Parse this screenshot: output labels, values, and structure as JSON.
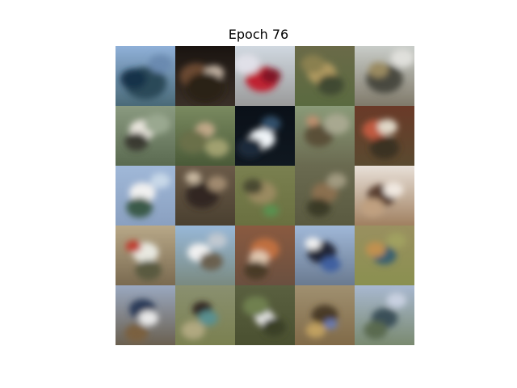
{
  "figure": {
    "title": "Epoch 76"
  },
  "samples": [
    {
      "sky": "#8fb0d8",
      "ground": "#4a6a78",
      "blobs": [
        [
          "#2a4a58",
          0.5,
          0.62,
          0.32
        ],
        [
          "#16324a",
          0.3,
          0.55,
          0.2
        ],
        [
          "#6a8ab0",
          0.75,
          0.3,
          0.18
        ]
      ]
    },
    {
      "sky": "#1a1410",
      "ground": "#3a3028",
      "blobs": [
        [
          "#6a4a30",
          0.35,
          0.5,
          0.25
        ],
        [
          "#c0b0a0",
          0.65,
          0.45,
          0.15
        ],
        [
          "#2a2018",
          0.5,
          0.7,
          0.3
        ]
      ]
    },
    {
      "sky": "#d0d8e0",
      "ground": "#9a9a9a",
      "blobs": [
        [
          "#c02030",
          0.45,
          0.55,
          0.25
        ],
        [
          "#801828",
          0.6,
          0.5,
          0.15
        ],
        [
          "#e0e0e8",
          0.2,
          0.3,
          0.2
        ]
      ]
    },
    {
      "sky": "#6a6a48",
      "ground": "#5a6a40",
      "blobs": [
        [
          "#b09a60",
          0.45,
          0.45,
          0.22
        ],
        [
          "#404830",
          0.6,
          0.65,
          0.2
        ],
        [
          "#8a8050",
          0.3,
          0.3,
          0.18
        ]
      ]
    },
    {
      "sky": "#c8ccc8",
      "ground": "#807a6a",
      "blobs": [
        [
          "#4a4a40",
          0.5,
          0.55,
          0.28
        ],
        [
          "#9a8a60",
          0.4,
          0.4,
          0.15
        ],
        [
          "#e0e0dc",
          0.8,
          0.2,
          0.18
        ]
      ]
    },
    {
      "sky": "#8a9a80",
      "ground": "#5a6a50",
      "blobs": [
        [
          "#e8e4dc",
          0.45,
          0.4,
          0.2
        ],
        [
          "#3a3a30",
          0.35,
          0.6,
          0.18
        ],
        [
          "#9aa890",
          0.7,
          0.3,
          0.2
        ]
      ]
    },
    {
      "sky": "#7a8a60",
      "ground": "#4a5a38",
      "blobs": [
        [
          "#c0a888",
          0.5,
          0.4,
          0.15
        ],
        [
          "#6a7048",
          0.3,
          0.6,
          0.22
        ],
        [
          "#a0a070",
          0.7,
          0.7,
          0.18
        ]
      ]
    },
    {
      "sky": "#0a1018",
      "ground": "#101820",
      "blobs": [
        [
          "#f0f4f8",
          0.45,
          0.55,
          0.2
        ],
        [
          "#30506a",
          0.6,
          0.3,
          0.15
        ],
        [
          "#1a2a3a",
          0.25,
          0.7,
          0.2
        ]
      ]
    },
    {
      "sky": "#8a9a78",
      "ground": "#6a6a50",
      "blobs": [
        [
          "#5a5038",
          0.4,
          0.5,
          0.22
        ],
        [
          "#a8a890",
          0.7,
          0.3,
          0.2
        ],
        [
          "#c09070",
          0.3,
          0.25,
          0.1
        ]
      ]
    },
    {
      "sky": "#6a3a28",
      "ground": "#5a4a30",
      "blobs": [
        [
          "#c05a40",
          0.35,
          0.4,
          0.2
        ],
        [
          "#e0d8c8",
          0.55,
          0.35,
          0.15
        ],
        [
          "#3a3020",
          0.5,
          0.7,
          0.22
        ]
      ]
    },
    {
      "sky": "#a0b8d8",
      "ground": "#8aa0c0",
      "blobs": [
        [
          "#f0f0f0",
          0.45,
          0.45,
          0.2
        ],
        [
          "#3a5a4a",
          0.4,
          0.7,
          0.2
        ],
        [
          "#c8d8e8",
          0.75,
          0.25,
          0.15
        ]
      ]
    },
    {
      "sky": "#6a5a48",
      "ground": "#4a4030",
      "blobs": [
        [
          "#302820",
          0.45,
          0.5,
          0.25
        ],
        [
          "#a08a70",
          0.7,
          0.3,
          0.15
        ],
        [
          "#c8b8a0",
          0.3,
          0.2,
          0.12
        ]
      ]
    },
    {
      "sky": "#7a8050",
      "ground": "#6a7040",
      "blobs": [
        [
          "#9a8a60",
          0.45,
          0.45,
          0.22
        ],
        [
          "#5a9050",
          0.6,
          0.75,
          0.12
        ],
        [
          "#4a4a30",
          0.3,
          0.35,
          0.15
        ]
      ]
    },
    {
      "sky": "#6a6a50",
      "ground": "#5a5a40",
      "blobs": [
        [
          "#8a7050",
          0.5,
          0.45,
          0.2
        ],
        [
          "#3a3a28",
          0.4,
          0.7,
          0.18
        ],
        [
          "#a09a80",
          0.7,
          0.25,
          0.15
        ]
      ]
    },
    {
      "sky": "#e8e0d8",
      "ground": "#a08060",
      "blobs": [
        [
          "#5a4030",
          0.45,
          0.5,
          0.22
        ],
        [
          "#f0e8e0",
          0.65,
          0.4,
          0.15
        ],
        [
          "#c0a080",
          0.3,
          0.7,
          0.18
        ]
      ]
    },
    {
      "sky": "#b8a888",
      "ground": "#7a6a50",
      "blobs": [
        [
          "#e8e8e0",
          0.5,
          0.45,
          0.2
        ],
        [
          "#c04030",
          0.3,
          0.35,
          0.12
        ],
        [
          "#5a5a40",
          0.55,
          0.75,
          0.2
        ]
      ]
    },
    {
      "sky": "#98b8d8",
      "ground": "#7a8a80",
      "blobs": [
        [
          "#f0f0f0",
          0.4,
          0.45,
          0.18
        ],
        [
          "#6a6050",
          0.6,
          0.6,
          0.18
        ],
        [
          "#c0c8d0",
          0.7,
          0.25,
          0.15
        ]
      ]
    },
    {
      "sky": "#8a5a40",
      "ground": "#6a5040",
      "blobs": [
        [
          "#c07040",
          0.5,
          0.4,
          0.22
        ],
        [
          "#e0c8b0",
          0.4,
          0.55,
          0.15
        ],
        [
          "#4a3a28",
          0.35,
          0.75,
          0.18
        ]
      ]
    },
    {
      "sky": "#a0b8d8",
      "ground": "#6a7a90",
      "blobs": [
        [
          "#202838",
          0.45,
          0.45,
          0.22
        ],
        [
          "#f0f0f0",
          0.3,
          0.3,
          0.12
        ],
        [
          "#4060a0",
          0.6,
          0.65,
          0.15
        ]
      ]
    },
    {
      "sky": "#9a9060",
      "ground": "#8a9050",
      "blobs": [
        [
          "#3a6070",
          0.5,
          0.5,
          0.18
        ],
        [
          "#c09050",
          0.35,
          0.4,
          0.15
        ],
        [
          "#a0a060",
          0.7,
          0.25,
          0.15
        ]
      ]
    },
    {
      "sky": "#9aa8c0",
      "ground": "#6a6050",
      "blobs": [
        [
          "#2a3a58",
          0.45,
          0.4,
          0.2
        ],
        [
          "#e8e8e8",
          0.55,
          0.55,
          0.15
        ],
        [
          "#7a6040",
          0.35,
          0.8,
          0.18
        ]
      ]
    },
    {
      "sky": "#8a9070",
      "ground": "#7a8050",
      "blobs": [
        [
          "#302820",
          0.45,
          0.4,
          0.15
        ],
        [
          "#5a9090",
          0.55,
          0.55,
          0.15
        ],
        [
          "#b0a880",
          0.3,
          0.75,
          0.18
        ]
      ]
    },
    {
      "sky": "#5a6040",
      "ground": "#4a5030",
      "blobs": [
        [
          "#e8e8e8",
          0.5,
          0.55,
          0.15
        ],
        [
          "#708050",
          0.35,
          0.35,
          0.2
        ],
        [
          "#3a4028",
          0.65,
          0.7,
          0.18
        ]
      ]
    },
    {
      "sky": "#a09070",
      "ground": "#806a48",
      "blobs": [
        [
          "#4a3a28",
          0.5,
          0.5,
          0.2
        ],
        [
          "#c0a060",
          0.35,
          0.75,
          0.15
        ],
        [
          "#6a7ab0",
          0.6,
          0.65,
          0.1
        ]
      ]
    },
    {
      "sky": "#a8b8d0",
      "ground": "#7a8a70",
      "blobs": [
        [
          "#3a5058",
          0.5,
          0.55,
          0.2
        ],
        [
          "#5a6a50",
          0.35,
          0.75,
          0.18
        ],
        [
          "#c8d0e0",
          0.7,
          0.25,
          0.15
        ]
      ]
    }
  ]
}
